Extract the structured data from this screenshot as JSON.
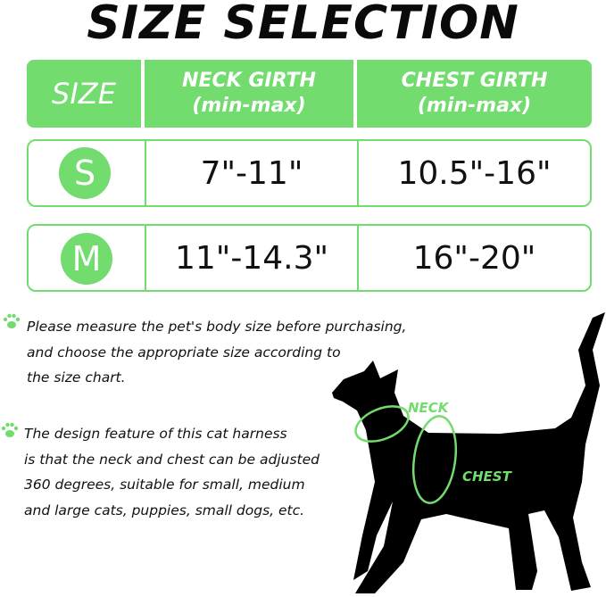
{
  "title": "SIZE SELECTION",
  "colors": {
    "accent": "#72dc6e",
    "text": "#111111",
    "silhouette": "#000000"
  },
  "table": {
    "headers": {
      "size": "SIZE",
      "neck": "NECK GIRTH",
      "neck_sub": "(min-max)",
      "chest": "CHEST GIRTH",
      "chest_sub": "(min-max)"
    },
    "rows": [
      {
        "size": "S",
        "neck": "7\"-11\"",
        "chest": "10.5\"-16\""
      },
      {
        "size": "M",
        "neck": "11\"-14.3\"",
        "chest": "16\"-20\""
      }
    ]
  },
  "notes": [
    {
      "icon": "paw-icon",
      "lines": [
        "Please measure the pet's body size before purchasing,",
        "and choose the appropriate size according to",
        "the size chart."
      ]
    },
    {
      "icon": "paw-icon",
      "lines": [
        "The design feature of this cat harness",
        "is that the neck and chest can be adjusted",
        "360 degrees, suitable for small, medium",
        "and large cats, puppies, small dogs, etc."
      ]
    }
  ],
  "diagram": {
    "neck_label": "NECK",
    "chest_label": "CHEST"
  }
}
